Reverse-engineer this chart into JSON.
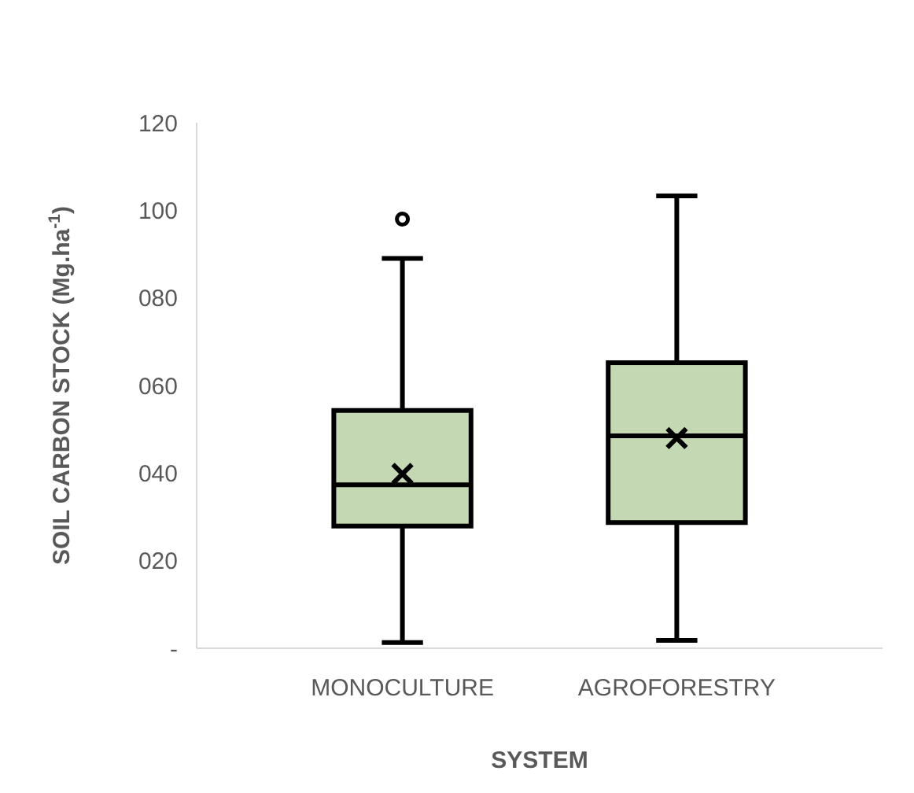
{
  "chart_data": {
    "type": "box",
    "xlabel": "SYSTEM",
    "ylabel": "SOIL CARBON STOCK (Mg.ha$^{-1}$)",
    "categories": [
      "MONOCULTURE",
      "AGROFORESTRY"
    ],
    "color": "#c4d8b3",
    "boxes": [
      {
        "low": 1.3,
        "q1": 27.9,
        "median": 37.3,
        "q3": 54.3,
        "high": 89,
        "mean": 39.8,
        "outliers": [
          98
        ]
      },
      {
        "low": 1.8,
        "q1": 28.7,
        "median": 48.5,
        "q3": 65.2,
        "high": 103.3,
        "mean": 48
      }
    ],
    "ylim": [
      0,
      120
    ],
    "yticks": [
      {
        "value": 0,
        "label": "-"
      },
      {
        "value": 20,
        "label": "020"
      },
      {
        "value": 40,
        "label": "040"
      },
      {
        "value": 60,
        "label": "060"
      },
      {
        "value": 80,
        "label": "080"
      },
      {
        "value": 100,
        "label": "100"
      },
      120
    ],
    "grid": false
  }
}
